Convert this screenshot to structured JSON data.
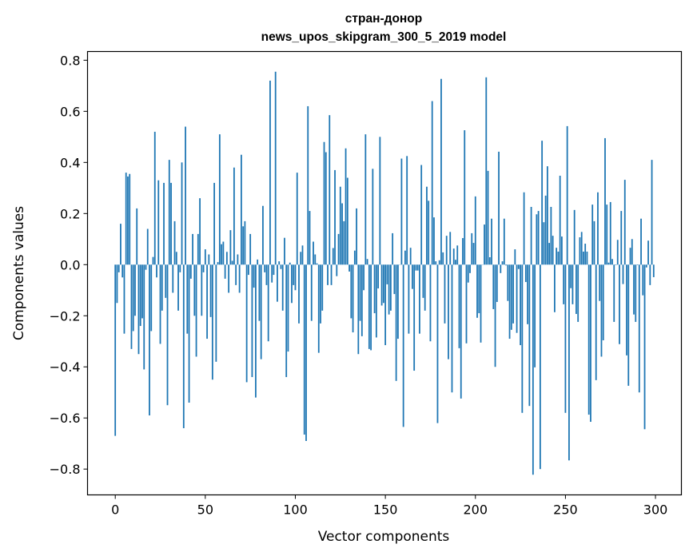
{
  "chart_data": {
    "type": "bar",
    "title": [
      "стран-донор",
      "news_upos_skipgram_300_5_2019 model"
    ],
    "xlabel": "Vector components",
    "ylabel": "Components values",
    "xlim": [
      -15.4,
      314.4
    ],
    "ylim": [
      -0.901,
      0.834
    ],
    "xticks": [
      0,
      50,
      100,
      150,
      200,
      250,
      300
    ],
    "xtick_labels": [
      "0",
      "50",
      "100",
      "150",
      "200",
      "250",
      "300"
    ],
    "yticks": [
      -0.8,
      -0.6,
      -0.4,
      -0.2,
      0.0,
      0.2,
      0.4,
      0.6,
      0.8
    ],
    "ytick_labels": [
      "−0.8",
      "−0.6",
      "−0.4",
      "−0.2",
      "0.0",
      "0.2",
      "0.4",
      "0.6",
      "0.8"
    ],
    "grid": false,
    "bar_color": "#1f77b4",
    "bar_width": 0.8,
    "values": [
      -0.67,
      -0.15,
      -0.03,
      0.16,
      -0.05,
      -0.27,
      0.36,
      0.345,
      0.355,
      -0.33,
      -0.26,
      -0.2,
      0.22,
      -0.35,
      -0.24,
      -0.21,
      -0.41,
      -0.02,
      0.14,
      -0.59,
      -0.26,
      0.03,
      0.52,
      -0.05,
      0.33,
      -0.31,
      -0.18,
      0.32,
      -0.13,
      -0.55,
      0.41,
      0.32,
      -0.11,
      0.17,
      0.05,
      -0.18,
      -0.03,
      0.4,
      -0.64,
      0.54,
      -0.27,
      -0.54,
      -0.055,
      0.12,
      -0.2,
      -0.36,
      0.12,
      0.26,
      -0.2,
      -0.03,
      0.06,
      -0.29,
      0.04,
      -0.205,
      -0.45,
      0.32,
      -0.38,
      0.01,
      0.51,
      0.08,
      0.09,
      -0.055,
      0.05,
      -0.11,
      0.135,
      0.015,
      0.38,
      -0.08,
      0.04,
      -0.11,
      0.43,
      0.15,
      0.17,
      -0.46,
      -0.04,
      0.12,
      -0.44,
      -0.09,
      -0.52,
      0.02,
      -0.22,
      -0.37,
      0.23,
      -0.03,
      -0.08,
      -0.3,
      0.72,
      -0.07,
      -0.04,
      0.755,
      -0.145,
      0.013,
      -0.017,
      -0.18,
      0.105,
      -0.44,
      -0.34,
      0.008,
      -0.15,
      -0.08,
      -0.1,
      0.36,
      -0.23,
      0.05,
      0.075,
      -0.665,
      -0.69,
      0.62,
      0.21,
      -0.22,
      0.09,
      0.04,
      0.005,
      -0.345,
      -0.23,
      -0.18,
      0.48,
      0.44,
      -0.08,
      0.585,
      -0.08,
      0.065,
      0.37,
      -0.045,
      0.12,
      0.305,
      0.24,
      0.17,
      0.455,
      0.34,
      -0.027,
      -0.21,
      -0.265,
      0.055,
      0.22,
      -0.35,
      -0.22,
      -0.28,
      -0.1,
      0.51,
      0.022,
      -0.33,
      -0.335,
      0.375,
      -0.19,
      -0.285,
      -0.093,
      0.5,
      -0.16,
      -0.15,
      -0.315,
      -0.077,
      -0.195,
      -0.18,
      0.123,
      -0.115,
      -0.455,
      -0.29,
      0.0,
      0.415,
      -0.635,
      0.055,
      0.425,
      -0.27,
      0.066,
      -0.095,
      -0.415,
      -0.023,
      -0.023,
      -0.27,
      0.39,
      -0.13,
      -0.18,
      0.305,
      0.25,
      -0.3,
      0.64,
      0.185,
      0.013,
      -0.62,
      0.017,
      0.727,
      0.048,
      -0.23,
      0.113,
      -0.37,
      0.128,
      -0.5,
      0.063,
      0.019,
      0.075,
      -0.327,
      -0.524,
      0.104,
      0.526,
      -0.308,
      -0.07,
      -0.033,
      0.123,
      0.085,
      0.267,
      -0.208,
      -0.19,
      -0.305,
      0.0,
      0.157,
      0.733,
      0.367,
      0.029,
      0.18,
      -0.174,
      -0.4,
      -0.146,
      0.442,
      -0.033,
      0.013,
      0.18,
      -0.003,
      -0.142,
      -0.29,
      -0.255,
      -0.23,
      0.06,
      -0.267,
      -0.017,
      -0.315,
      -0.58,
      0.283,
      -0.068,
      -0.233,
      -0.553,
      0.226,
      -0.822,
      -0.402,
      0.197,
      0.21,
      -0.8,
      0.485,
      0.166,
      0.27,
      0.385,
      0.085,
      0.226,
      0.113,
      -0.186,
      0.066,
      0.051,
      0.348,
      0.11,
      -0.155,
      -0.58,
      0.542,
      -0.766,
      -0.092,
      -0.155,
      0.214,
      -0.193,
      -0.224,
      0.107,
      0.128,
      0.051,
      0.082,
      0.051,
      -0.587,
      -0.615,
      0.235,
      0.17,
      -0.452,
      0.283,
      -0.142,
      -0.36,
      -0.296,
      0.495,
      0.235,
      0.008,
      0.245,
      0.022,
      -0.224,
      -0.002,
      0.097,
      -0.311,
      0.21,
      -0.076,
      0.332,
      -0.355,
      -0.474,
      0.066,
      0.1,
      -0.195,
      -0.224,
      -0.002,
      -0.5,
      0.18,
      -0.12,
      -0.644,
      -0.011,
      0.094,
      -0.08,
      0.41,
      -0.049
    ]
  }
}
